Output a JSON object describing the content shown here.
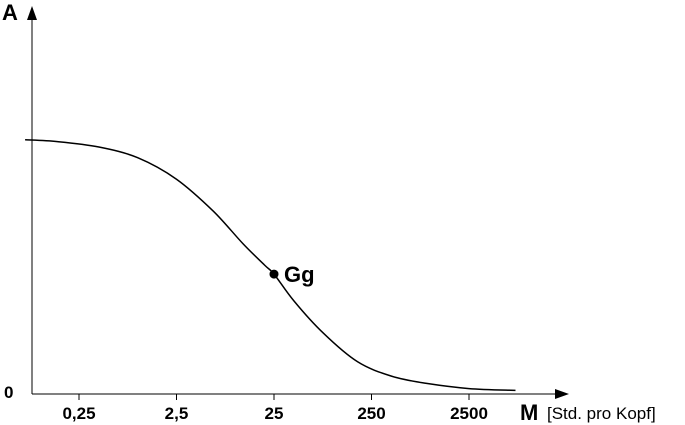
{
  "chart_data": {
    "type": "line",
    "title": "",
    "ylabel": "A",
    "xlabel": "M",
    "xlabel_unit": "[Std. pro Kopf]",
    "x_scale": "log",
    "y_origin_label": "0",
    "x_ticks": [
      {
        "value": 0.25,
        "label": "0,25"
      },
      {
        "value": 2.5,
        "label": "2,5"
      },
      {
        "value": 25,
        "label": "25"
      },
      {
        "value": 250,
        "label": "250"
      },
      {
        "value": 2500,
        "label": "2500"
      }
    ],
    "xlim": [
      0.05,
      25000
    ],
    "ylim": [
      0,
      1
    ],
    "series": [
      {
        "x": [
          0.07,
          0.15,
          0.4,
          1,
          2.5,
          6,
          12,
          20,
          25,
          40,
          80,
          180,
          400,
          900,
          2500,
          7500
        ],
        "y": [
          0.71,
          0.705,
          0.69,
          0.66,
          0.6,
          0.51,
          0.42,
          0.36,
          0.335,
          0.26,
          0.17,
          0.09,
          0.05,
          0.03,
          0.015,
          0.01
        ]
      }
    ],
    "annotations": [
      {
        "label": "Gg",
        "x": 25,
        "y": 0.335
      }
    ],
    "grid": false,
    "legend": "none"
  }
}
